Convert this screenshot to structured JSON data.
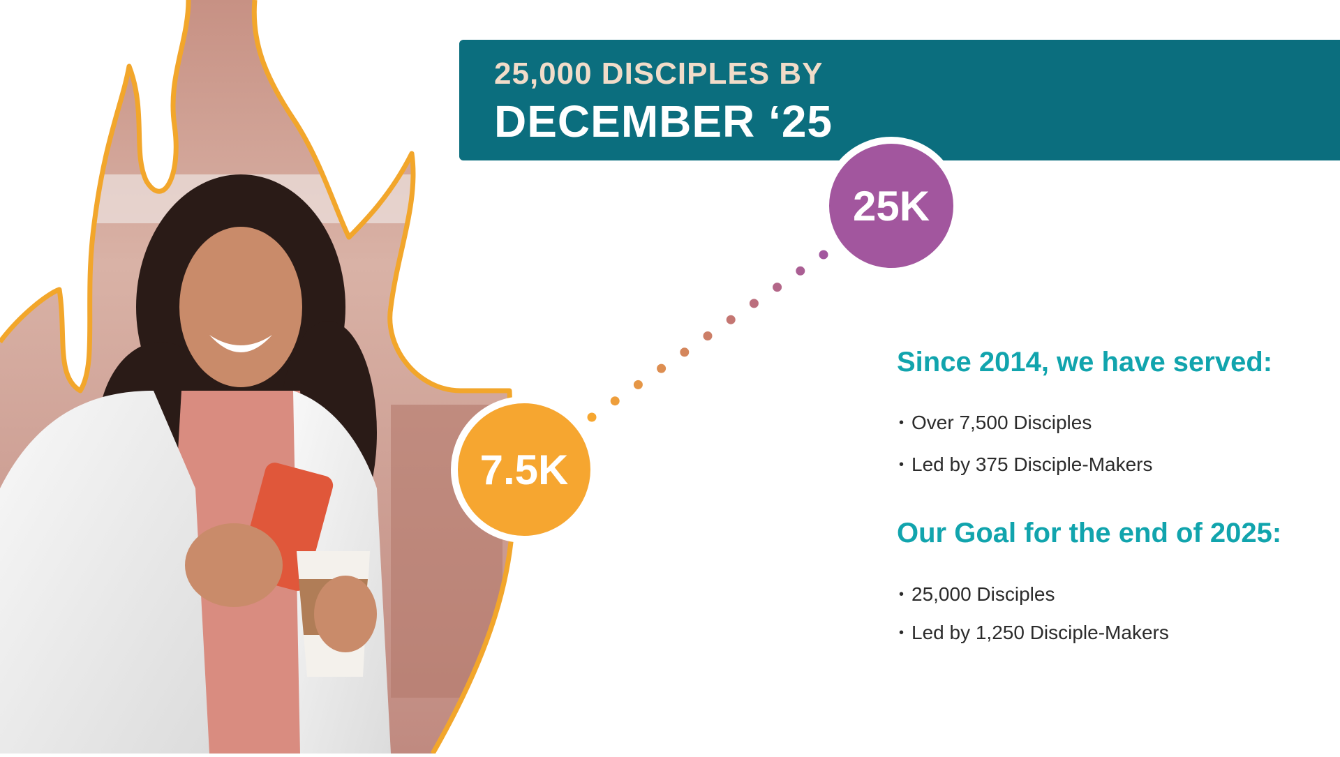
{
  "banner": {
    "line1": "25,000 DISCIPLES BY",
    "line2": "DECEMBER ‘25"
  },
  "milestones": {
    "goal_label": "25K",
    "current_label": "7.5K"
  },
  "served": {
    "heading": "Since 2014, we have served:",
    "items": [
      "Over 7,500 Disciples",
      "Led by 375 Disciple-Makers"
    ]
  },
  "goal": {
    "heading": "Our Goal for the end of 2025:",
    "items": [
      "25,000 Disciples",
      "Led by 1,250 Disciple-Makers"
    ]
  },
  "colors": {
    "banner": "#0b6e7e",
    "heading": "#11a4ad",
    "goal_circle": "#a2569e",
    "current_circle": "#f6a630",
    "flame_outline": "#f2a62b"
  }
}
